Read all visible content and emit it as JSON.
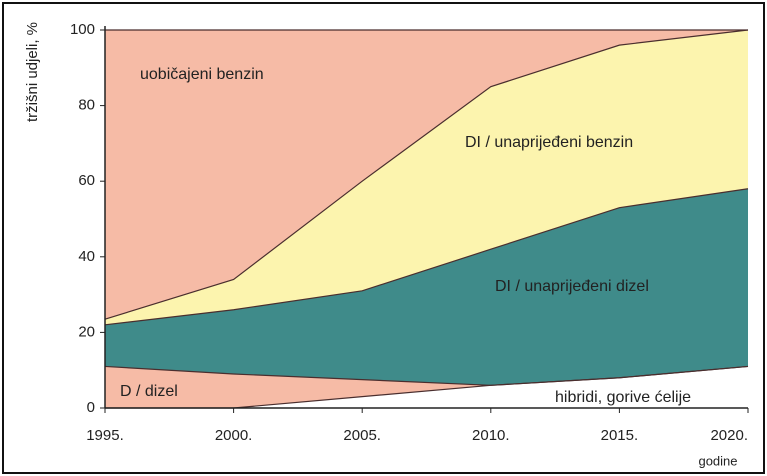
{
  "chart_data": {
    "type": "stacked_area",
    "ylabel": "tržišni udjeli, %",
    "xlabel": "godine",
    "x": [
      1995,
      2000,
      2005,
      2010,
      2015,
      2020
    ],
    "xlim": [
      1995,
      2020
    ],
    "xticks": [
      {
        "value": 1995,
        "label": "1995."
      },
      {
        "value": 2000,
        "label": "2000."
      },
      {
        "value": 2005,
        "label": "2005."
      },
      {
        "value": 2010,
        "label": "2010."
      },
      {
        "value": 2015,
        "label": "2015."
      },
      {
        "value": 2020,
        "label": "2020."
      }
    ],
    "ylim": [
      0,
      100
    ],
    "yticks": [
      0,
      20,
      40,
      60,
      80,
      100
    ],
    "series": [
      {
        "name": "hibridi, gorive ćelije",
        "color": "#ffffff",
        "values": [
          0,
          0,
          3,
          6,
          8,
          11
        ]
      },
      {
        "name": "D / dizel",
        "color": "#f6bba6",
        "values": [
          11,
          9,
          4.5,
          0,
          0,
          0
        ]
      },
      {
        "name": "DI / unaprijeđeni dizel",
        "color": "#3f8b8a",
        "values": [
          11,
          17,
          23.5,
          36,
          45,
          47
        ]
      },
      {
        "name": "DI / unaprijeđeni benzin",
        "color": "#fcf4ae",
        "values": [
          1.5,
          8,
          29,
          43,
          43,
          42
        ]
      },
      {
        "name": "uobičajeni benzin",
        "color": "#f6bba6",
        "values": [
          76.5,
          66,
          40,
          15,
          4,
          0
        ]
      }
    ]
  }
}
